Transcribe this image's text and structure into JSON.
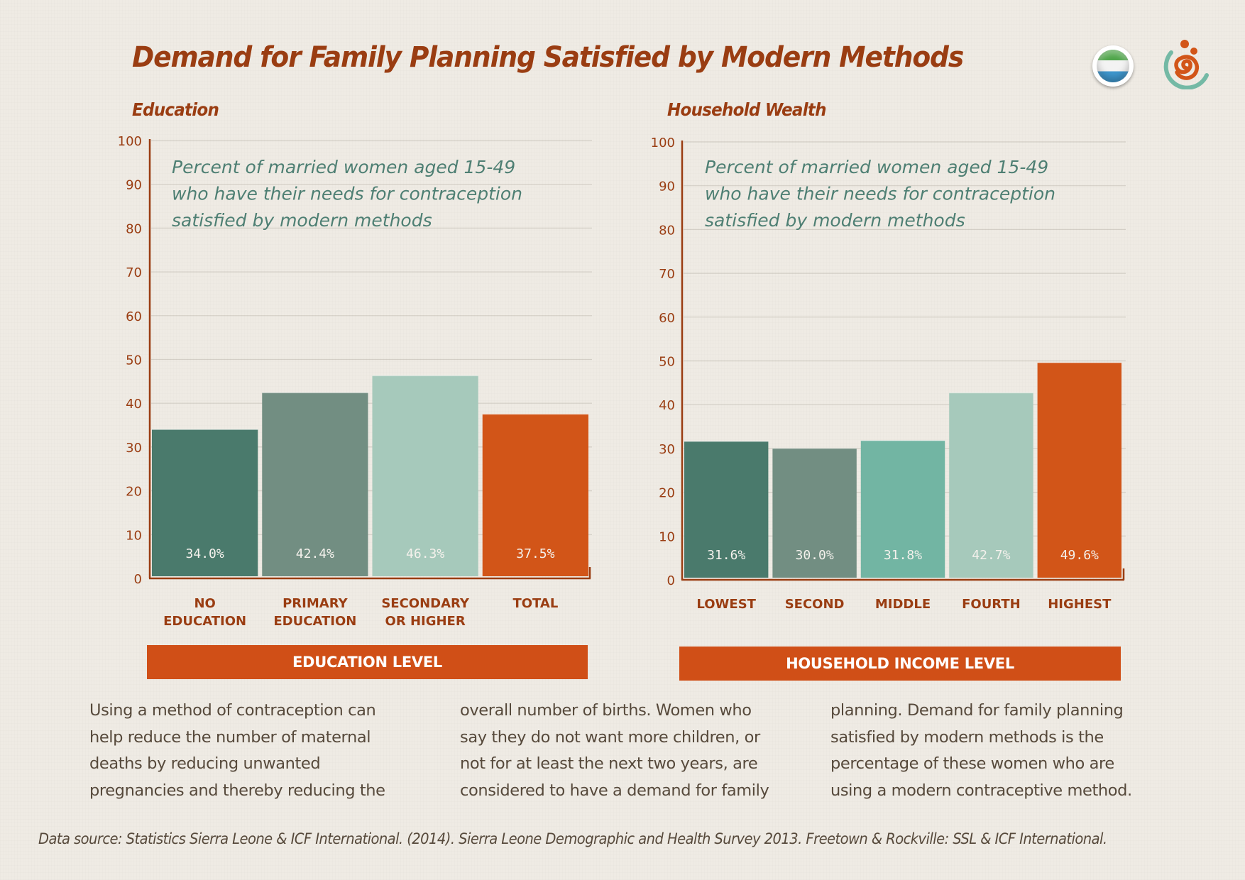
{
  "title": "Demand for Family Planning Satisfied by Modern Methods",
  "icons": {
    "flag": "sierra-leone-flag-icon",
    "logo": "family-spiral-logo-icon"
  },
  "colors": {
    "title": "#9a3d12",
    "accent_orange": "#d25518",
    "dark_teal": "#4a7a6c",
    "gray_green": "#728e82",
    "mid_teal": "#72b5a3",
    "light_teal": "#a6c9bb",
    "note_text": "#4e7f73"
  },
  "chart_data": [
    {
      "type": "bar",
      "title": "Education",
      "annotation": [
        "Percent of married women aged 15-49",
        "who have their needs for contraception",
        "satisfied by modern methods"
      ],
      "categories": [
        [
          "NO",
          "EDUCATION"
        ],
        [
          "PRIMARY",
          "EDUCATION"
        ],
        [
          "SECONDARY",
          "OR HIGHER"
        ],
        [
          "TOTAL"
        ]
      ],
      "values": [
        34.0,
        42.4,
        46.3,
        37.5
      ],
      "value_labels": [
        "34.0%",
        "42.4%",
        "46.3%",
        "37.5%"
      ],
      "bar_colors": [
        "#4a7a6c",
        "#728e82",
        "#a6c9bb",
        "#d25518"
      ],
      "label_colors": [
        "#f4f1ec",
        "#f4f1ec",
        "#e9f0ec",
        "#f4f1ec"
      ],
      "xlabel": "EDUCATION LEVEL",
      "ylabel": "",
      "yticks": [
        0,
        10,
        20,
        30,
        40,
        50,
        60,
        70,
        80,
        90,
        100
      ],
      "ylim": [
        0,
        100
      ],
      "grid": true
    },
    {
      "type": "bar",
      "title": "Household Wealth",
      "annotation": [
        "Percent of married women aged 15-49",
        "who have their needs for contraception",
        "satisfied by modern methods"
      ],
      "categories": [
        [
          "LOWEST"
        ],
        [
          "SECOND"
        ],
        [
          "MIDDLE"
        ],
        [
          "FOURTH"
        ],
        [
          "HIGHEST"
        ]
      ],
      "values": [
        31.6,
        30.0,
        31.8,
        42.7,
        49.6
      ],
      "value_labels": [
        "31.6%",
        "30.0%",
        "31.8%",
        "42.7%",
        "49.6%"
      ],
      "bar_colors": [
        "#4a7a6c",
        "#728e82",
        "#72b5a3",
        "#a6c9bb",
        "#d25518"
      ],
      "label_colors": [
        "#f4f1ec",
        "#f4f1ec",
        "#f4f1ec",
        "#e9f0ec",
        "#f4f1ec"
      ],
      "xlabel": "HOUSEHOLD INCOME LEVEL",
      "ylabel": "",
      "yticks": [
        0,
        10,
        20,
        30,
        40,
        50,
        60,
        70,
        80,
        90,
        100
      ],
      "ylim": [
        0,
        100
      ],
      "grid": true
    }
  ],
  "body_text": {
    "col1": [
      "Using a method of contraception can",
      "help reduce the number of maternal",
      "deaths by reducing unwanted",
      "pregnancies and thereby reducing the"
    ],
    "col2": [
      "overall number of births. Women who",
      "say they do not want more children, or",
      "not for at least the next two years, are",
      "considered to have a demand for family"
    ],
    "col3": [
      "planning. Demand for family planning",
      "satisfied by modern methods is the",
      "percentage of these women who are",
      "using a modern contraceptive method."
    ]
  },
  "source": "Data source: Statistics Sierra Leone & ICF International. (2014). Sierra Leone Demographic and Health Survey 2013. Freetown & Rockville: SSL & ICF International."
}
